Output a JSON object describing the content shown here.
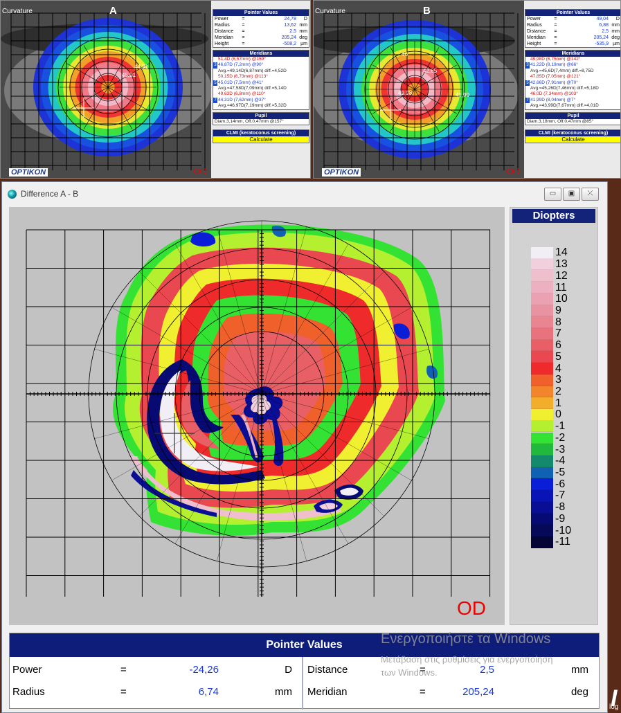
{
  "panel_a": {
    "map_label": "Curvature",
    "letter": "A",
    "od": "OD",
    "logo": "OPTIKON",
    "pointer_title": "Pointer Values",
    "pointer": [
      {
        "label": "Power",
        "eq": "=",
        "value": "24,78",
        "unit": "D"
      },
      {
        "label": "Radius",
        "eq": "=",
        "value": "13,62",
        "unit": "mm"
      },
      {
        "label": "Distance",
        "eq": "=",
        "value": "2,5",
        "unit": "mm"
      },
      {
        "label": "Meridian",
        "eq": "=",
        "value": "205,24",
        "unit": "deg"
      },
      {
        "label": "Height",
        "eq": "=",
        "value": "-508,2",
        "unit": "µm"
      }
    ],
    "meridians_title": "Meridians",
    "meridian_lines": [
      {
        "num": "",
        "text": "51,4D (6,57mm) @159°"
      },
      {
        "num": "3",
        "text": "46,87D (7,2mm) @90°"
      },
      {
        "num": "",
        "text": "Avg.=49,14D(6,87mm) diff.=4,52D"
      },
      {
        "num": "",
        "text": "50,15D (6,73mm) @113°"
      },
      {
        "num": "5",
        "text": "45,01D (7,5mm) @41°"
      },
      {
        "num": "",
        "text": "Avg.=47,58D(7,09mm) diff.=5,14D"
      },
      {
        "num": "",
        "text": "49,63D (6,8mm) @110°"
      },
      {
        "num": "7",
        "text": "44,31D (7,62mm) @37°"
      },
      {
        "num": "",
        "text": "Avg.=46,97D(7,19mm) diff.=5,32D"
      }
    ],
    "map_annotations": [
      "44,31",
      "45,01"
    ],
    "pupil_title": "Pupil",
    "pupil_text": "Diam.3,14mm, Off.0,47mm @157°",
    "clmi_title": "CLMI (keratoconus screening)",
    "calculate": "Calculate"
  },
  "panel_b": {
    "map_label": "Curvature",
    "letter": "B",
    "od": "OD",
    "logo": "OPTIKON",
    "pointer_title": "Pointer Values",
    "pointer": [
      {
        "label": "Power",
        "eq": "=",
        "value": "49,04",
        "unit": "D"
      },
      {
        "label": "Radius",
        "eq": "=",
        "value": "6,88",
        "unit": "mm"
      },
      {
        "label": "Distance",
        "eq": "=",
        "value": "2,5",
        "unit": "mm"
      },
      {
        "label": "Meridian",
        "eq": "=",
        "value": "205,24",
        "unit": "deg"
      },
      {
        "label": "Height",
        "eq": "=",
        "value": "-535,9",
        "unit": "µm"
      }
    ],
    "meridians_title": "Meridians",
    "meridian_lines": [
      {
        "num": "",
        "text": "49,98D (6,75mm) @142°"
      },
      {
        "num": "3",
        "text": "41,22D (8,19mm) @66°"
      },
      {
        "num": "",
        "text": "Avg.=45,6D(7,4mm) diff.=8,75D"
      },
      {
        "num": "",
        "text": "47,85D (7,05mm) @121°"
      },
      {
        "num": "5",
        "text": "42,66D (7,91mm) @70°"
      },
      {
        "num": "",
        "text": "Avg.=45,26D(7,46mm) diff.=5,18D"
      },
      {
        "num": "",
        "text": "46,0D (7,34mm) @103°"
      },
      {
        "num": "7",
        "text": "41,99D (8,04mm) @7°"
      },
      {
        "num": "",
        "text": "Avg.=43,99D(7,67mm) diff.=4,01D"
      }
    ],
    "map_annotations": [
      "42,65",
      "41,99",
      "46",
      "49,98"
    ],
    "pupil_title": "Pupil",
    "pupil_text": "Diam.3,18mm, Off.0,47mm @85°",
    "clmi_title": "CLMI (keratoconus screening)",
    "calculate": "Calculate"
  },
  "diff_window": {
    "title": "Difference A - B",
    "buttons": {
      "minimize": "▭",
      "maximize": "▣",
      "close": "⤫"
    },
    "od": "OD",
    "scale_title": "Diopters",
    "scale": [
      {
        "label": "14",
        "color": "#f2eef6"
      },
      {
        "label": "13",
        "color": "#f2cfdc"
      },
      {
        "label": "12",
        "color": "#efbfcd"
      },
      {
        "label": "11",
        "color": "#ecb0c0"
      },
      {
        "label": "10",
        "color": "#eaa2b2"
      },
      {
        "label": "9",
        "color": "#e993a2"
      },
      {
        "label": "8",
        "color": "#e88590"
      },
      {
        "label": "7",
        "color": "#e8737c"
      },
      {
        "label": "6",
        "color": "#e95f66"
      },
      {
        "label": "5",
        "color": "#ea4850"
      },
      {
        "label": "4",
        "color": "#ee2a2a"
      },
      {
        "label": "3",
        "color": "#f0602a"
      },
      {
        "label": "2",
        "color": "#f2842c"
      },
      {
        "label": "1",
        "color": "#f2ad2a"
      },
      {
        "label": "0",
        "color": "#f0ef30"
      },
      {
        "label": "-1",
        "color": "#b4f030"
      },
      {
        "label": "-2",
        "color": "#34e234"
      },
      {
        "label": "-3",
        "color": "#22b83e"
      },
      {
        "label": "-4",
        "color": "#148a6c"
      },
      {
        "label": "-5",
        "color": "#1060b4"
      },
      {
        "label": "-6",
        "color": "#0a1ed8"
      },
      {
        "label": "-7",
        "color": "#0a14b4"
      },
      {
        "label": "-8",
        "color": "#0a0e94"
      },
      {
        "label": "-9",
        "color": "#080a74"
      },
      {
        "label": "-10",
        "color": "#060858"
      },
      {
        "label": "-11",
        "color": "#040436"
      }
    ],
    "pointer": {
      "title": "Pointer Values",
      "power": {
        "label": "Power",
        "eq": "=",
        "value": "-24,26",
        "unit": "D"
      },
      "radius": {
        "label": "Radius",
        "eq": "=",
        "value": "6,74",
        "unit": "mm"
      },
      "distance": {
        "label": "Distance",
        "eq": "=",
        "value": "2,5",
        "unit": "mm"
      },
      "meridian": {
        "label": "Meridian",
        "eq": "=",
        "value": "205,24",
        "unit": "deg"
      }
    }
  },
  "watermark": {
    "line1": "Ενεργοποιήστε τα Windows",
    "line2": "Μετάβαση στις ρυθμίσεις για ενεργοποίηση",
    "line3": "των Windows."
  },
  "background": {
    "letter": "I",
    "fragment": "log"
  }
}
